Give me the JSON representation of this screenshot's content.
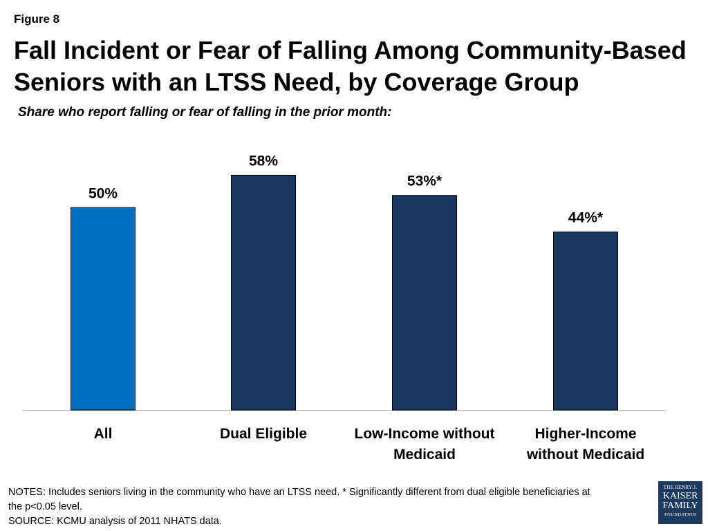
{
  "figure_label": "Figure 8",
  "title_lines": [
    "Fall Incident or Fear of Falling Among Community-Based",
    "Seniors with an LTSS Need, by Coverage Group"
  ],
  "subtitle": "Share who report falling or fear of falling in the prior month:",
  "chart_data": {
    "type": "bar",
    "categories": [
      [
        "All"
      ],
      [
        "Dual Eligible"
      ],
      [
        "Low-Income without",
        "Medicaid"
      ],
      [
        "Higher-Income",
        "without Medicaid"
      ]
    ],
    "values": [
      50,
      58,
      53,
      44
    ],
    "data_labels": [
      "50%",
      "58%",
      "53%*",
      "44%*"
    ],
    "bar_colors": [
      "#0070C0",
      "#17375E",
      "#17375E",
      "#17375E"
    ],
    "ylim": [
      0,
      62
    ],
    "grid": false,
    "legend": "none"
  },
  "notes": [
    "NOTES: Includes seniors living in the community who have an LTSS need. * Significantly different from dual eligible beneficiaries at",
    "the p<0.05 level.",
    "SOURCE: KCMU analysis of 2011 NHATS data."
  ],
  "logo": {
    "line1": "THE HENRY J.",
    "line2": "KAISER",
    "line3": "FAMILY",
    "line4": "FOUNDATION"
  }
}
